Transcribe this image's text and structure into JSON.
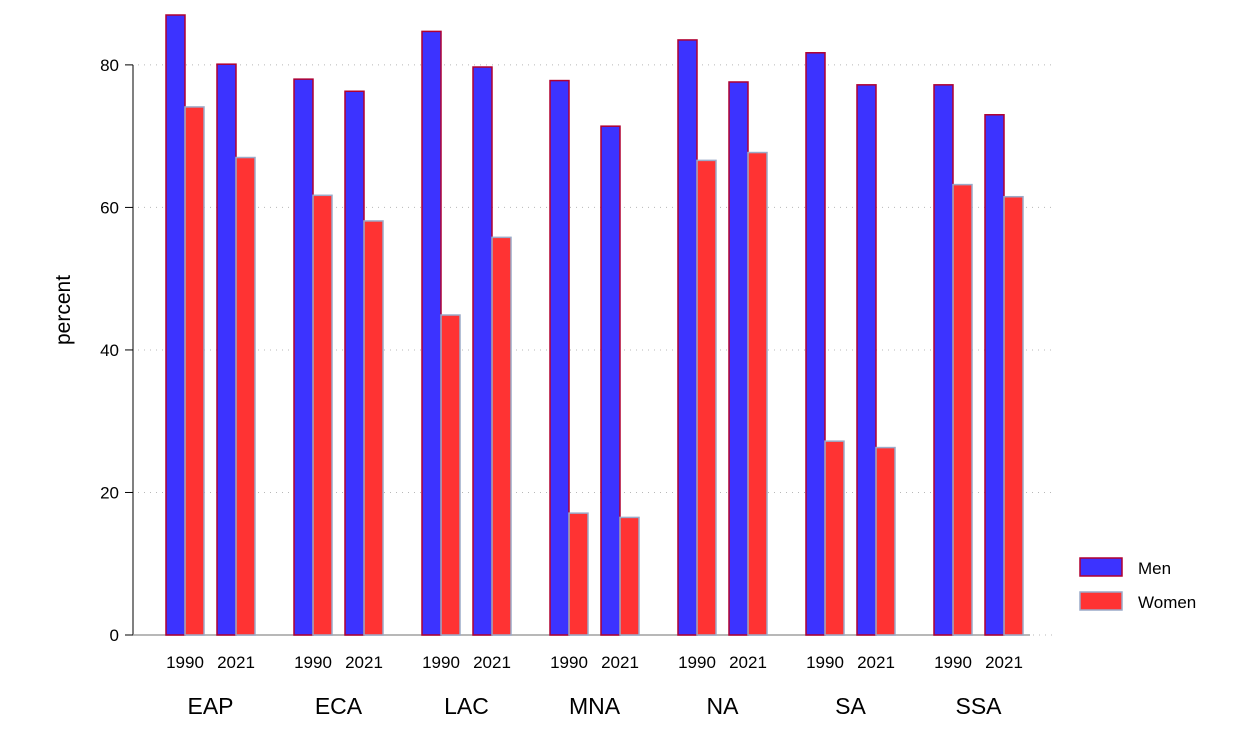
{
  "chart_data": {
    "type": "bar",
    "ylabel": "percent",
    "ylim": [
      0,
      87
    ],
    "yticks": [
      0,
      20,
      40,
      60,
      80
    ],
    "grid": true,
    "legend_position": "right",
    "groups": [
      "EAP",
      "ECA",
      "LAC",
      "MNA",
      "NA",
      "SA",
      "SSA"
    ],
    "subcategories": [
      "1990",
      "2021"
    ],
    "series": [
      {
        "name": "Men",
        "color": "#3c33ff",
        "border": "#b00030",
        "values": [
          87.0,
          80.1,
          78.0,
          76.3,
          84.7,
          79.7,
          77.8,
          71.4,
          83.5,
          77.6,
          81.7,
          77.2,
          77.2,
          73.0
        ]
      },
      {
        "name": "Women",
        "color": "#ff3333",
        "border": "#9aaac8",
        "values": [
          74.1,
          67.0,
          61.7,
          58.1,
          44.9,
          55.8,
          17.1,
          16.5,
          66.6,
          67.7,
          27.2,
          26.3,
          63.2,
          61.5
        ]
      }
    ]
  }
}
